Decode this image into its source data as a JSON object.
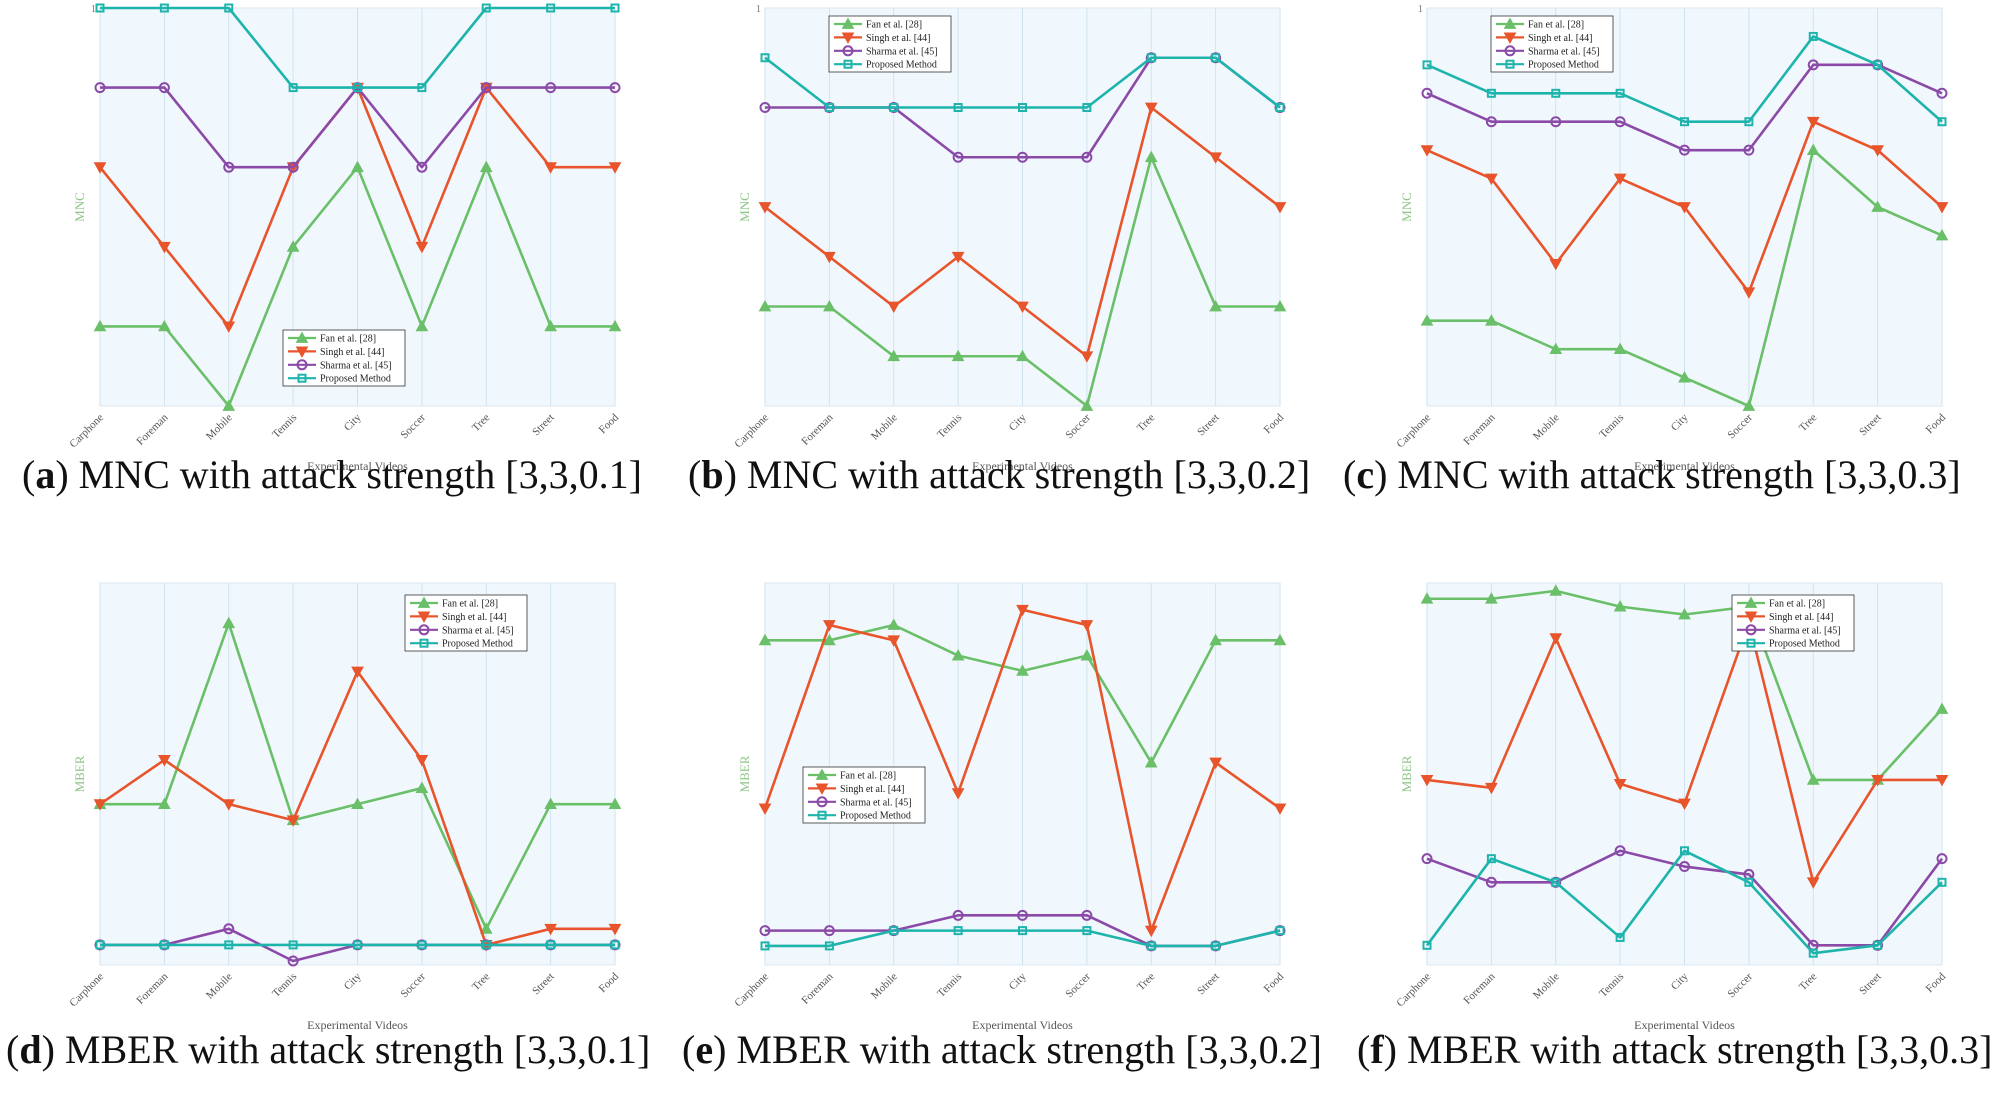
{
  "colors": {
    "fan": "#6abf69",
    "singh": "#e8542b",
    "sharma": "#8b4aa8",
    "proposed": "#1eb4ac",
    "plot_bg": "#f1f8fd",
    "grid": "#cfe3ef",
    "axis_label": "#8fc487"
  },
  "chart_data": [
    {
      "id": "a",
      "type": "line",
      "ylabel": "MNC",
      "xlabel": "Experimental Videos",
      "ytick_top": "1",
      "ylim": [
        0,
        5
      ],
      "legend_position": "bottom-center",
      "categories": [
        "Carphone",
        "Foreman",
        "Mobile",
        "Tennis",
        "City",
        "Soccer",
        "Tree",
        "Street",
        "Food"
      ],
      "series": [
        {
          "name": "Fan et al. [28]",
          "key": "fan",
          "marker": "triangle-up",
          "values": [
            1,
            1,
            0,
            2,
            3,
            1,
            3,
            1,
            1
          ]
        },
        {
          "name": "Singh et al. [44]",
          "key": "singh",
          "marker": "triangle-down",
          "values": [
            3,
            2,
            1,
            3,
            4,
            2,
            4,
            3,
            3
          ]
        },
        {
          "name": "Sharma et al. [45]",
          "key": "sharma",
          "marker": "circle",
          "values": [
            4,
            4,
            3,
            3,
            4,
            3,
            4,
            4,
            4
          ]
        },
        {
          "name": "Proposed Method",
          "key": "proposed",
          "marker": "square",
          "values": [
            5,
            5,
            5,
            4,
            4,
            4,
            5,
            5,
            5
          ]
        }
      ],
      "caption_label": "a",
      "caption_text": " MNC with attack strength [3,3,0.1]"
    },
    {
      "id": "b",
      "type": "line",
      "ylabel": "MNC",
      "xlabel": "Experimental Videos",
      "ytick_top": "1",
      "ylim": [
        0,
        8
      ],
      "legend_position": "top-left",
      "categories": [
        "Carphone",
        "Foreman",
        "Mobile",
        "Tennis",
        "City",
        "Soccer",
        "Tree",
        "Street",
        "Food"
      ],
      "series": [
        {
          "name": "Fan et al. [28]",
          "key": "fan",
          "marker": "triangle-up",
          "values": [
            2,
            2,
            1,
            1,
            1,
            0,
            5,
            2,
            2
          ]
        },
        {
          "name": "Singh et al. [44]",
          "key": "singh",
          "marker": "triangle-down",
          "values": [
            4,
            3,
            2,
            3,
            2,
            1,
            6,
            5,
            4
          ]
        },
        {
          "name": "Sharma et al. [45]",
          "key": "sharma",
          "marker": "circle",
          "values": [
            6,
            6,
            6,
            5,
            5,
            5,
            7,
            7,
            6
          ]
        },
        {
          "name": "Proposed Method",
          "key": "proposed",
          "marker": "square",
          "values": [
            7,
            6,
            6,
            6,
            6,
            6,
            7,
            7,
            6
          ]
        }
      ],
      "caption_label": "b",
      "caption_text": " MNC with attack strength [3,3,0.2]"
    },
    {
      "id": "c",
      "type": "line",
      "ylabel": "MNC",
      "xlabel": "Experimental Videos",
      "ytick_top": "1",
      "ylim": [
        0,
        14
      ],
      "legend_position": "top-left",
      "categories": [
        "Carphone",
        "Foreman",
        "Mobile",
        "Tennis",
        "City",
        "Soccer",
        "Tree",
        "Street",
        "Food"
      ],
      "series": [
        {
          "name": "Fan et al. [28]",
          "key": "fan",
          "marker": "triangle-up",
          "values": [
            3,
            3,
            2,
            2,
            1,
            0,
            9,
            7,
            6
          ]
        },
        {
          "name": "Singh et al. [44]",
          "key": "singh",
          "marker": "triangle-down",
          "values": [
            9,
            8,
            5,
            8,
            7,
            4,
            10,
            9,
            7
          ]
        },
        {
          "name": "Sharma et al. [45]",
          "key": "sharma",
          "marker": "circle",
          "values": [
            11,
            10,
            10,
            10,
            9,
            9,
            12,
            12,
            11
          ]
        },
        {
          "name": "Proposed Method",
          "key": "proposed",
          "marker": "square",
          "values": [
            12,
            11,
            11,
            11,
            10,
            10,
            13,
            12,
            10
          ]
        }
      ],
      "caption_label": "c",
      "caption_text": " MNC with attack strength [3,3,0.3]"
    },
    {
      "id": "d",
      "type": "line",
      "ylabel": "MBER",
      "xlabel": "Experimental Videos",
      "ytick_top": "",
      "ylim": [
        -0.05,
        0.9
      ],
      "legend_position": "top-right",
      "categories": [
        "Carphone",
        "Foreman",
        "Mobile",
        "Tennis",
        "City",
        "Soccer",
        "Tree",
        "Street",
        "Food"
      ],
      "series": [
        {
          "name": "Fan et al. [28]",
          "key": "fan",
          "marker": "triangle-up",
          "values": [
            0.35,
            0.35,
            0.8,
            0.31,
            0.35,
            0.39,
            0.04,
            0.35,
            0.35
          ]
        },
        {
          "name": "Singh et al. [44]",
          "key": "singh",
          "marker": "triangle-down",
          "values": [
            0.35,
            0.46,
            0.35,
            0.31,
            0.68,
            0.46,
            0.0,
            0.04,
            0.04
          ]
        },
        {
          "name": "Sharma et al. [45]",
          "key": "sharma",
          "marker": "circle",
          "values": [
            0.0,
            0.0,
            0.04,
            -0.04,
            0.0,
            0.0,
            0.0,
            0.0,
            0.0
          ]
        },
        {
          "name": "Proposed Method",
          "key": "proposed",
          "marker": "square",
          "values": [
            0.0,
            0.0,
            0.0,
            0.0,
            0.0,
            0.0,
            0.0,
            0.0,
            0.0
          ]
        }
      ],
      "caption_label": "d",
      "caption_text": " MBER with attack strength [3,3,0.1]"
    },
    {
      "id": "e",
      "type": "line",
      "ylabel": "MBER",
      "xlabel": "Experimental Videos",
      "ytick_top": "",
      "ylim": [
        -0.05,
        0.95
      ],
      "legend_position": "bottom-left",
      "categories": [
        "Carphone",
        "Foreman",
        "Mobile",
        "Tennis",
        "City",
        "Soccer",
        "Tree",
        "Street",
        "Food"
      ],
      "series": [
        {
          "name": "Fan et al. [28]",
          "key": "fan",
          "marker": "triangle-up",
          "values": [
            0.8,
            0.8,
            0.84,
            0.76,
            0.72,
            0.76,
            0.48,
            0.8,
            0.8
          ]
        },
        {
          "name": "Singh et al. [44]",
          "key": "singh",
          "marker": "triangle-down",
          "values": [
            0.36,
            0.84,
            0.8,
            0.4,
            0.88,
            0.84,
            0.04,
            0.48,
            0.36
          ]
        },
        {
          "name": "Sharma et al. [45]",
          "key": "sharma",
          "marker": "circle",
          "values": [
            0.04,
            0.04,
            0.04,
            0.08,
            0.08,
            0.08,
            0.0,
            0.0,
            0.04
          ]
        },
        {
          "name": "Proposed Method",
          "key": "proposed",
          "marker": "square",
          "values": [
            0.0,
            0.0,
            0.04,
            0.04,
            0.04,
            0.04,
            0.0,
            0.0,
            0.04
          ]
        }
      ],
      "caption_label": "e",
      "caption_text": " MBER with attack strength [3,3,0.2]"
    },
    {
      "id": "f",
      "type": "line",
      "ylabel": "MBER",
      "xlabel": "Experimental Videos",
      "ytick_top": "",
      "ylim": [
        -0.05,
        0.92
      ],
      "legend_position": "top-right",
      "categories": [
        "Carphone",
        "Foreman",
        "Mobile",
        "Tennis",
        "City",
        "Soccer",
        "Tree",
        "Street",
        "Food"
      ],
      "series": [
        {
          "name": "Fan et al. [28]",
          "key": "fan",
          "marker": "triangle-up",
          "values": [
            0.88,
            0.88,
            0.9,
            0.86,
            0.84,
            0.86,
            0.42,
            0.42,
            0.6
          ]
        },
        {
          "name": "Singh et al. [44]",
          "key": "singh",
          "marker": "triangle-down",
          "values": [
            0.42,
            0.4,
            0.78,
            0.41,
            0.36,
            0.82,
            0.16,
            0.42,
            0.42
          ]
        },
        {
          "name": "Sharma et al. [45]",
          "key": "sharma",
          "marker": "circle",
          "values": [
            0.22,
            0.16,
            0.16,
            0.24,
            0.2,
            0.18,
            0.0,
            0.0,
            0.22
          ]
        },
        {
          "name": "Proposed Method",
          "key": "proposed",
          "marker": "square",
          "values": [
            0.0,
            0.22,
            0.16,
            0.02,
            0.24,
            0.16,
            -0.02,
            0.0,
            0.16
          ]
        }
      ],
      "caption_label": "f",
      "caption_text": " MBER with attack strength [3,3,0.3]"
    }
  ]
}
